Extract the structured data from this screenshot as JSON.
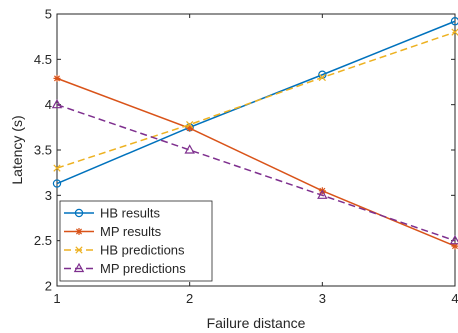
{
  "chart_data": {
    "type": "line",
    "xlabel": "Failure distance",
    "ylabel": "Latency (s)",
    "x": [
      1,
      2,
      3,
      4
    ],
    "xlim": [
      1,
      4
    ],
    "ylim": [
      2,
      5
    ],
    "xticks": [
      "1",
      "2",
      "3",
      "4"
    ],
    "yticks": [
      "2",
      "2.5",
      "3",
      "3.5",
      "4",
      "4.5",
      "5"
    ],
    "grid": false,
    "legend_position": "bottom-left",
    "series": [
      {
        "name": "HB results",
        "values": [
          3.13,
          3.75,
          4.33,
          4.92
        ],
        "color": "#0072BD",
        "dash": "solid",
        "marker": "circle"
      },
      {
        "name": "MP results",
        "values": [
          4.29,
          3.74,
          3.05,
          2.44
        ],
        "color": "#D95319",
        "dash": "solid",
        "marker": "asterisk"
      },
      {
        "name": "HB predictions",
        "values": [
          3.3,
          3.78,
          4.3,
          4.8
        ],
        "color": "#EDB120",
        "dash": "dashed",
        "marker": "x"
      },
      {
        "name": "MP predictions",
        "values": [
          4.0,
          3.5,
          3.0,
          2.5
        ],
        "color": "#7E2F8E",
        "dash": "dashed",
        "marker": "triangle"
      }
    ]
  }
}
